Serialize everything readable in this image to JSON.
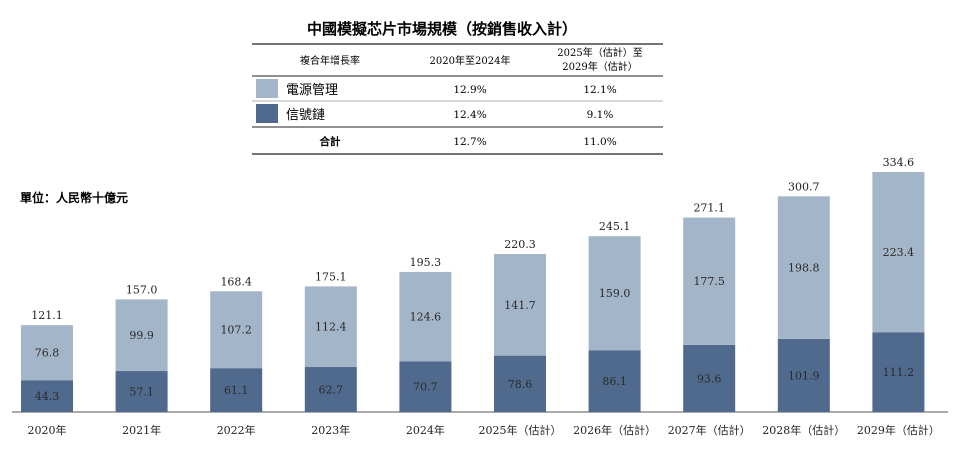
{
  "colors": {
    "power": "#a3b5c8",
    "signal": "#4f6a8c"
  },
  "legend_table": {
    "header": {
      "label": "複合年增長率",
      "col1": "2020年至2024年",
      "col2_line1": "2025年（估計）至",
      "col2_line2": "2029年（估計）"
    },
    "rows": [
      {
        "label": "電源管理",
        "col1": "12.9%",
        "col2": "12.1%",
        "color": "#a3b5c8"
      },
      {
        "label": "信號鏈",
        "col1": "12.4%",
        "col2": "9.1%",
        "color": "#4f6a8c"
      }
    ],
    "total": {
      "label": "合計",
      "col1": "12.7%",
      "col2": "11.0%"
    }
  },
  "chart_data": {
    "type": "bar",
    "stacked": true,
    "title": "中國模擬芯片市場規模（按銷售收入計）",
    "unit_label": "單位：人民幣十億元",
    "categories": [
      "2020年",
      "2021年",
      "2022年",
      "2023年",
      "2024年",
      "2025年（估計）",
      "2026年（估計）",
      "2027年（估計）",
      "2028年（估計）",
      "2029年（估計）"
    ],
    "series": [
      {
        "name": "信號鏈",
        "color": "#4f6a8c",
        "values": [
          44.3,
          57.1,
          61.1,
          62.7,
          70.7,
          78.6,
          86.1,
          93.6,
          101.9,
          111.2
        ]
      },
      {
        "name": "電源管理",
        "color": "#a3b5c8",
        "values": [
          76.8,
          99.9,
          107.2,
          112.4,
          124.6,
          141.7,
          159.0,
          177.5,
          198.8,
          223.4
        ]
      }
    ],
    "totals": [
      121.1,
      157.0,
      168.4,
      175.1,
      195.3,
      220.3,
      245.1,
      271.1,
      300.7,
      334.6
    ],
    "ylim": [
      0,
      334.6
    ],
    "grid": false,
    "legend": "top-center"
  }
}
